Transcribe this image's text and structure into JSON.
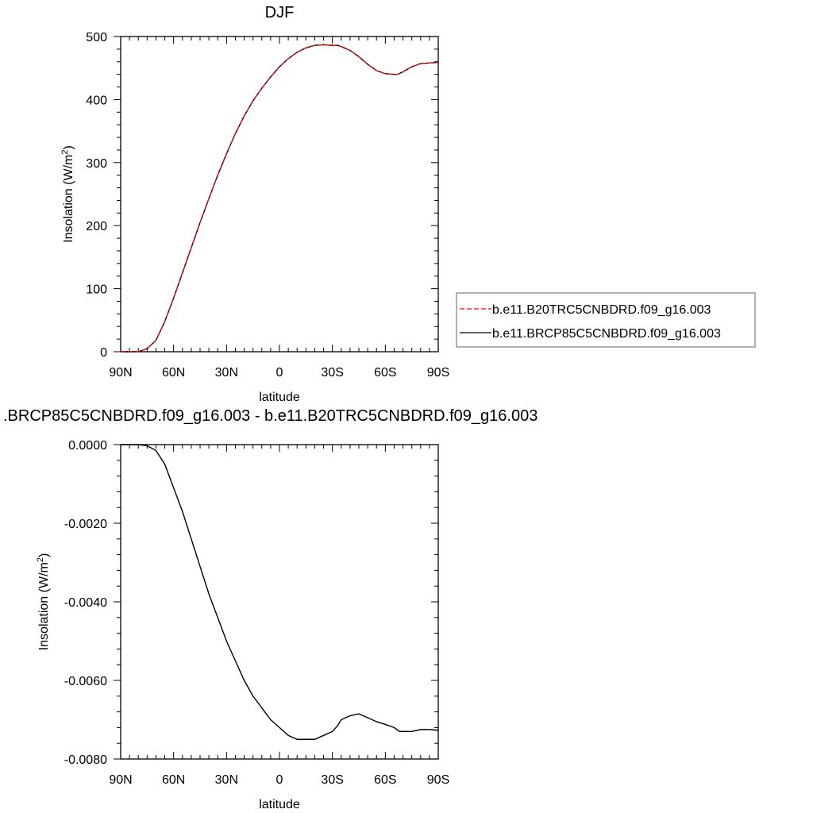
{
  "chart_data": [
    {
      "type": "line",
      "title": "DJF",
      "xlabel": "latitude",
      "ylabel": "Insolation (W/m",
      "ylabel_sup": "2",
      "ylabel_end": ")",
      "xlim": [
        90,
        -90
      ],
      "ylim": [
        0,
        500
      ],
      "x_ticks": [
        90,
        60,
        30,
        0,
        -30,
        -60,
        -90
      ],
      "x_tick_labels": [
        "90N",
        "60N",
        "30N",
        "0",
        "30S",
        "60S",
        "90S"
      ],
      "y_ticks": [
        0,
        100,
        200,
        300,
        400,
        500
      ],
      "y_tick_labels": [
        "0",
        "100",
        "200",
        "300",
        "400",
        "500"
      ],
      "legend_position": "right",
      "series": [
        {
          "name": "b.e11.B20TRC5CNBDRD.f09_g16.003",
          "color": "#ff0000",
          "dash": "dashed",
          "x": [
            90,
            85,
            80,
            75,
            70,
            65,
            60,
            55,
            50,
            45,
            40,
            35,
            30,
            25,
            20,
            15,
            10,
            5,
            0,
            -5,
            -10,
            -15,
            -20,
            -25,
            -30,
            -33,
            -35,
            -40,
            -45,
            -50,
            -55,
            -60,
            -65,
            -67,
            -70,
            -75,
            -80,
            -85,
            -90
          ],
          "values": [
            0,
            0,
            0,
            5,
            18,
            48,
            85,
            125,
            165,
            205,
            243,
            280,
            314,
            346,
            374,
            398,
            418,
            436,
            452,
            465,
            475,
            482,
            486,
            487,
            486,
            486,
            484,
            478,
            468,
            456,
            446,
            441,
            440,
            440,
            444,
            452,
            457,
            458,
            459
          ]
        },
        {
          "name": "b.e11.BRCP85C5CNBDRD.f09_g16.003",
          "color": "#000000",
          "dash": "solid",
          "x": [
            90,
            85,
            80,
            75,
            70,
            65,
            60,
            55,
            50,
            45,
            40,
            35,
            30,
            25,
            20,
            15,
            10,
            5,
            0,
            -5,
            -10,
            -15,
            -20,
            -25,
            -30,
            -33,
            -35,
            -40,
            -45,
            -50,
            -55,
            -60,
            -65,
            -67,
            -70,
            -75,
            -80,
            -85,
            -90
          ],
          "values": [
            0,
            0,
            0,
            5,
            18,
            48,
            85,
            125,
            165,
            205,
            243,
            280,
            314,
            346,
            374,
            398,
            418,
            436,
            452,
            465,
            475,
            482,
            486,
            487,
            486,
            486,
            484,
            478,
            468,
            456,
            446,
            441,
            440,
            440,
            444,
            452,
            457,
            458,
            459
          ]
        }
      ]
    },
    {
      "type": "line",
      "title": ".BRCP85C5CNBDRD.f09_g16.003 - b.e11.B20TRC5CNBDRD.f09_g16.003",
      "xlabel": "latitude",
      "ylabel": "Insolation (W/m",
      "ylabel_sup": "2",
      "ylabel_end": ")",
      "xlim": [
        90,
        -90
      ],
      "ylim": [
        -0.008,
        0
      ],
      "x_ticks": [
        90,
        60,
        30,
        0,
        -30,
        -60,
        -90
      ],
      "x_tick_labels": [
        "90N",
        "60N",
        "30N",
        "0",
        "30S",
        "60S",
        "90S"
      ],
      "y_ticks": [
        0,
        -0.002,
        -0.004,
        -0.006,
        -0.008
      ],
      "y_tick_labels": [
        "0.0000",
        "-0.0020",
        "-0.0040",
        "-0.0060",
        "-0.0080"
      ],
      "series": [
        {
          "color": "#000000",
          "dash": "solid",
          "x": [
            90,
            85,
            80,
            75,
            70,
            65,
            60,
            55,
            50,
            45,
            40,
            35,
            30,
            25,
            20,
            15,
            10,
            5,
            0,
            -5,
            -10,
            -15,
            -20,
            -25,
            -30,
            -33,
            -35,
            -40,
            -45,
            -50,
            -55,
            -60,
            -65,
            -68,
            -70,
            -75,
            -80,
            -85,
            -90
          ],
          "values": [
            0,
            0,
            0,
            -3e-05,
            -0.00015,
            -0.0005,
            -0.0011,
            -0.0017,
            -0.0024,
            -0.0031,
            -0.0038,
            -0.0044,
            -0.005,
            -0.0055,
            -0.006,
            -0.0064,
            -0.0067,
            -0.007,
            -0.0072,
            -0.0074,
            -0.0075,
            -0.0075,
            -0.0075,
            -0.0074,
            -0.0073,
            -0.00715,
            -0.007,
            -0.0069,
            -0.00685,
            -0.00695,
            -0.00705,
            -0.00712,
            -0.0072,
            -0.0073,
            -0.0073,
            -0.0073,
            -0.00725,
            -0.00725,
            -0.00727
          ]
        }
      ]
    }
  ]
}
